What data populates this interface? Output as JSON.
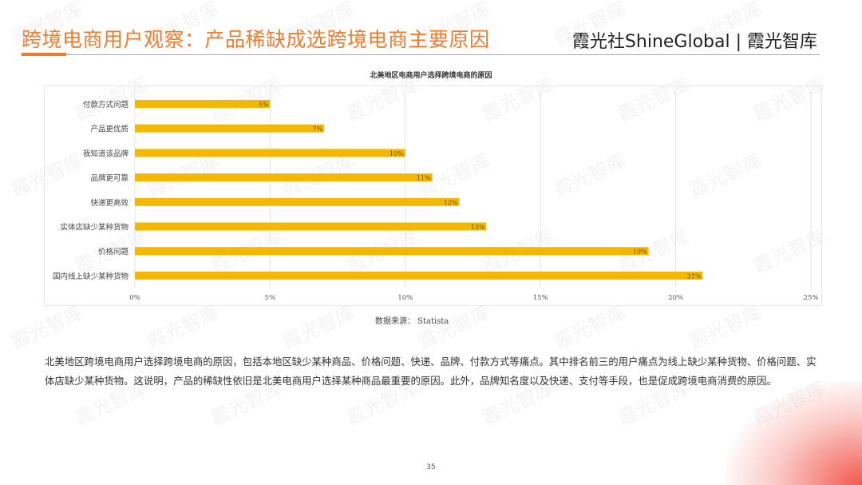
{
  "header": {
    "title": "跨境电商用户观察：产品稀缺成选跨境电商主要原因",
    "brand": "霞光社ShineGlobal | 霞光智库"
  },
  "watermark": "霞光智库",
  "colors": {
    "accent": "#ee7b2e",
    "bar": "#f5b800"
  },
  "chart_data": {
    "type": "bar",
    "orientation": "horizontal",
    "title": "北美地区电商用户选择跨境电商的原因",
    "categories": [
      "付款方式问题",
      "产品更优质",
      "我知道该品牌",
      "品牌更可靠",
      "快递更高效",
      "实体店缺少某种货物",
      "价格问题",
      "国内线上缺少某种货物"
    ],
    "values": [
      5,
      7,
      10,
      11,
      12,
      13,
      19,
      21
    ],
    "data_labels": [
      "5%",
      "7%",
      "10%",
      "11%",
      "12%",
      "13%",
      "19%",
      "21%"
    ],
    "xticks": [
      "0%",
      "5%",
      "10%",
      "15%",
      "20%",
      "25%"
    ],
    "xlim": [
      0,
      25
    ],
    "grid": true
  },
  "source": "数据来源： Statista",
  "paragraph": "北美地区跨境电商用户选择跨境电商的原因，包括本地区缺少某种商品、价格问题、快递、品牌、付款方式等痛点。其中排名前三的用户痛点为线上缺少某种货物、价格问题、实体店缺少某种货物。这说明，产品的稀缺性依旧是北美电商用户选择某种商品最重要的原因。此外，品牌知名度以及快递、支付等手段，也是促成跨境电商消费的原因。",
  "page_number": "35"
}
